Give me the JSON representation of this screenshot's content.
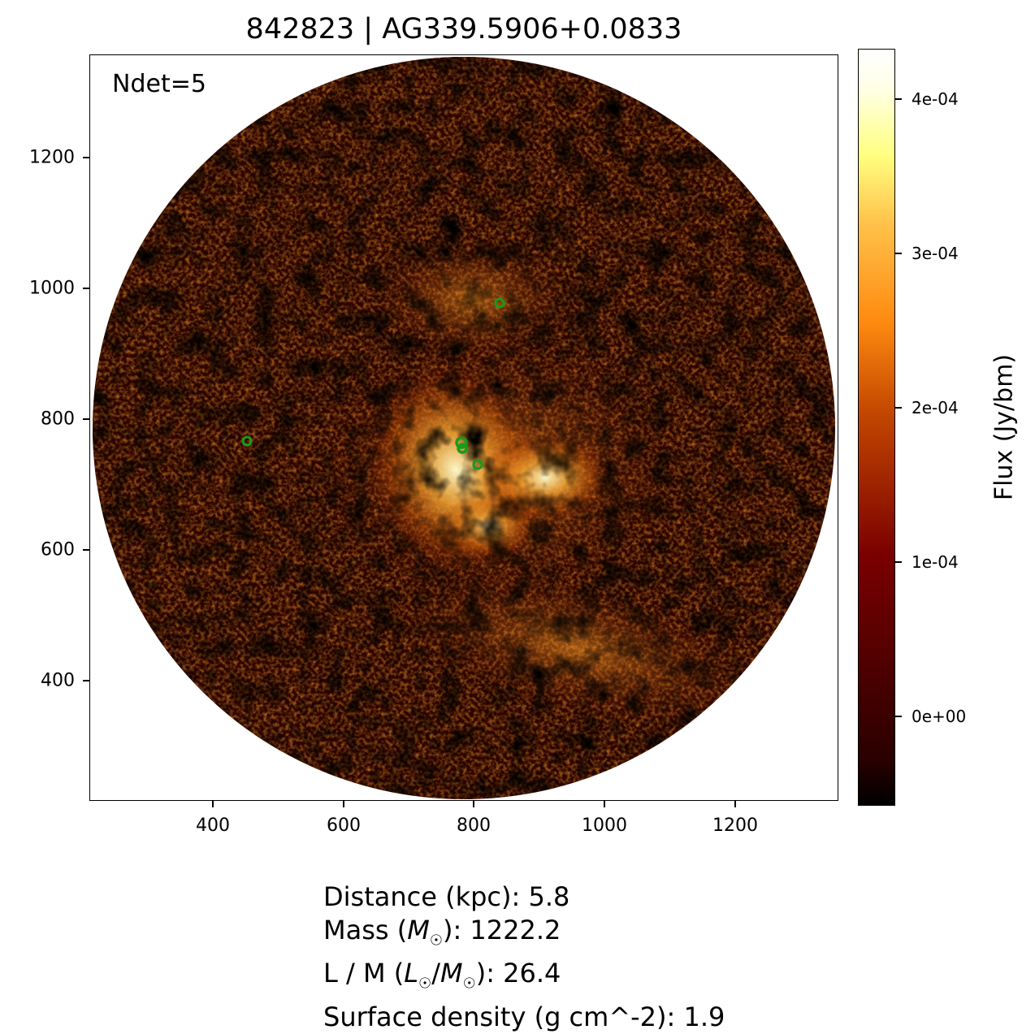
{
  "title": "842823 | AG339.5906+0.0833",
  "annotation": "Ndet=5",
  "axes": {
    "x_ticks": [
      "400",
      "600",
      "800",
      "1000",
      "1200"
    ],
    "y_ticks": [
      "1200",
      "1000",
      "800",
      "600",
      "400"
    ],
    "x_range": [
      215,
      1355
    ],
    "y_range": [
      215,
      1355
    ]
  },
  "colorbar": {
    "label": "Flux (Jy/bm)",
    "ticks": [
      "4e-04",
      "3e-04",
      "2e-04",
      "1e-04",
      "0e+00"
    ],
    "colormap": "afmhot"
  },
  "image": {
    "description_colors": {
      "background": "#000000",
      "mid": "#c34700",
      "bright": "#ffffe0"
    },
    "detections": [
      {
        "x": 453,
        "y": 765
      },
      {
        "x": 778,
        "y": 763
      },
      {
        "x": 806,
        "y": 729
      },
      {
        "x": 839,
        "y": 977
      },
      {
        "x": 780,
        "y": 755
      }
    ],
    "detection_color": "#1a9a1a"
  },
  "info": {
    "distance": "Distance (kpc): 5.8",
    "mass_prefix": "Mass (",
    "mass_sym": "M",
    "mass_suffix": "): 1222.2",
    "lm_prefix": "L / M (",
    "lm_l": "L",
    "lm_m": "M",
    "lm_suffix": "): 26.4",
    "surface": "Surface density (g cm^-2): 1.9"
  }
}
